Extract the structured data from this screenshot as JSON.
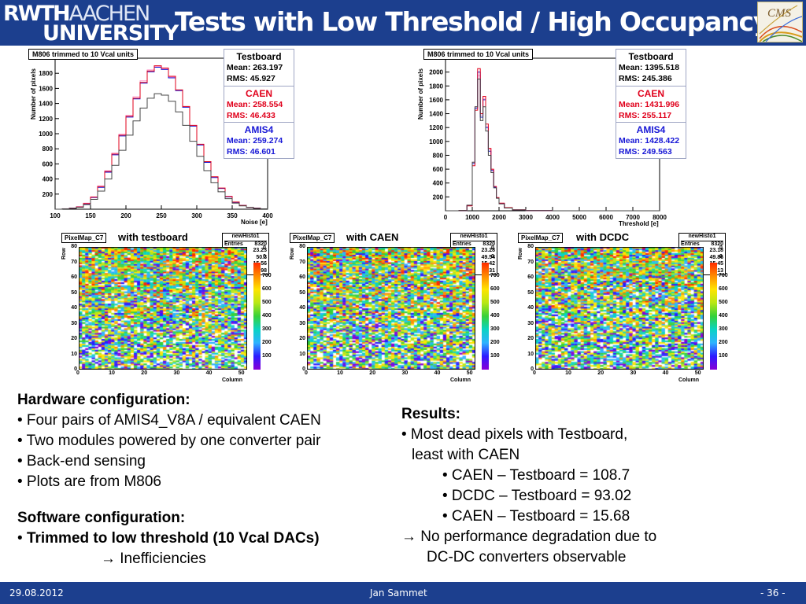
{
  "header": {
    "logo_line1a": "RWTH",
    "logo_line1b": "AACHEN",
    "logo_line2": "UNIVERSITY",
    "title": "Tests with Low Threshold / High Occupancy",
    "cms_logo": "CMS"
  },
  "histograms": [
    {
      "title": "M806 trimmed to 10 Vcal units",
      "ylabel": "Number of pixels",
      "xlabel": "Noise [e]",
      "stats": [
        {
          "name": "Testboard",
          "mean": "Mean: 263.197",
          "rms": "RMS: 45.927",
          "color": "#000000"
        },
        {
          "name": "CAEN",
          "mean": "Mean: 258.554",
          "rms": "RMS: 46.433",
          "color": "#e0001b"
        },
        {
          "name": "AMIS4",
          "mean": "Mean: 259.274",
          "rms": "RMS: 46.601",
          "color": "#1717d6"
        }
      ]
    },
    {
      "title": "M806 trimmed to 10 Vcal units",
      "ylabel": "Number of pixels",
      "xlabel": "Threshold [e]",
      "stats": [
        {
          "name": "Testboard",
          "mean": "Mean: 1395.518",
          "rms": "RMS: 245.386",
          "color": "#000000"
        },
        {
          "name": "CAEN",
          "mean": "Mean: 1431.996",
          "rms": "RMS: 255.117",
          "color": "#e0001b"
        },
        {
          "name": "AMIS4",
          "mean": "Mean: 1428.422",
          "rms": "RMS: 249.563",
          "color": "#1717d6"
        }
      ]
    }
  ],
  "chart_data": [
    {
      "type": "line",
      "title": "M806 trimmed to 10 Vcal units",
      "xlabel": "Noise [e]",
      "ylabel": "Number of pixels",
      "xlim": [
        100,
        400
      ],
      "ylim": [
        0,
        2000
      ],
      "xticks": [
        "100",
        "150",
        "200",
        "250",
        "300",
        "350",
        "400"
      ],
      "yticks": [
        "200",
        "400",
        "600",
        "800",
        "1000",
        "1200",
        "1400",
        "1600",
        "1800"
      ],
      "x": [
        100,
        110,
        120,
        130,
        140,
        150,
        160,
        170,
        180,
        190,
        200,
        210,
        220,
        230,
        240,
        250,
        260,
        270,
        280,
        290,
        300,
        310,
        320,
        330,
        340,
        350,
        360,
        370,
        380,
        390,
        400
      ],
      "series": [
        {
          "name": "Testboard",
          "color": "#444444",
          "values": [
            0,
            5,
            10,
            25,
            60,
            130,
            240,
            400,
            580,
            780,
            980,
            1170,
            1340,
            1470,
            1530,
            1510,
            1430,
            1290,
            1110,
            900,
            700,
            510,
            350,
            230,
            140,
            80,
            45,
            25,
            10,
            5,
            0
          ]
        },
        {
          "name": "CAEN",
          "color": "#e0001b",
          "values": [
            0,
            5,
            12,
            30,
            75,
            160,
            300,
            500,
            730,
            980,
            1230,
            1470,
            1680,
            1830,
            1900,
            1870,
            1760,
            1580,
            1360,
            1110,
            860,
            630,
            430,
            280,
            170,
            95,
            50,
            25,
            12,
            5,
            0
          ]
        },
        {
          "name": "AMIS4",
          "color": "#1717d6",
          "values": [
            0,
            5,
            12,
            30,
            70,
            155,
            290,
            490,
            720,
            970,
            1220,
            1460,
            1670,
            1820,
            1880,
            1850,
            1740,
            1570,
            1350,
            1100,
            850,
            620,
            420,
            275,
            165,
            90,
            50,
            25,
            12,
            5,
            0
          ]
        },
        {
          "name": "",
          "color": "#ff99cc",
          "values": [
            0,
            6,
            14,
            34,
            80,
            165,
            310,
            510,
            745,
            995,
            1245,
            1490,
            1700,
            1845,
            1890,
            1860,
            1750,
            1575,
            1355,
            1105,
            855,
            625,
            425,
            278,
            168,
            93,
            50,
            25,
            12,
            5,
            0
          ]
        }
      ]
    },
    {
      "type": "line",
      "title": "M806 trimmed to 10 Vcal units",
      "xlabel": "Threshold [e]",
      "ylabel": "Number of pixels",
      "xlim": [
        0,
        8000
      ],
      "ylim": [
        0,
        2200
      ],
      "xticks": [
        "0",
        "1000",
        "2000",
        "3000",
        "4000",
        "5000",
        "6000",
        "7000",
        "8000"
      ],
      "yticks": [
        "200",
        "400",
        "600",
        "800",
        "1000",
        "1200",
        "1400",
        "1600",
        "1800",
        "2000"
      ],
      "x": [
        0,
        500,
        800,
        1000,
        1100,
        1200,
        1300,
        1400,
        1500,
        1600,
        1700,
        1800,
        1900,
        2000,
        2200,
        2500,
        3000,
        4000,
        6000,
        8000
      ],
      "series": [
        {
          "name": "Testboard",
          "color": "#444444",
          "values": [
            0,
            5,
            80,
            700,
            1500,
            1900,
            1300,
            1500,
            1150,
            800,
            550,
            330,
            180,
            100,
            40,
            12,
            3,
            0,
            0,
            0
          ]
        },
        {
          "name": "CAEN",
          "color": "#e0001b",
          "values": [
            0,
            5,
            70,
            650,
            1450,
            2050,
            1400,
            1650,
            1250,
            900,
            600,
            350,
            190,
            110,
            45,
            14,
            3,
            0,
            0,
            0
          ]
        },
        {
          "name": "AMIS4",
          "color": "#1717d6",
          "values": [
            0,
            5,
            75,
            680,
            1480,
            2000,
            1350,
            1600,
            1200,
            860,
            580,
            340,
            185,
            105,
            42,
            13,
            3,
            0,
            0,
            0
          ]
        },
        {
          "name": "",
          "color": "#ff99cc",
          "values": [
            0,
            5,
            80,
            700,
            1500,
            1950,
            1380,
            1620,
            1220,
            880,
            590,
            345,
            188,
            108,
            44,
            13,
            3,
            0,
            0,
            0
          ]
        }
      ]
    },
    {
      "type": "heatmap",
      "title": "PixelMap_C7",
      "xlabel": "Column",
      "ylabel": "Row",
      "xlim": [
        0,
        52
      ],
      "ylim": [
        0,
        80
      ],
      "zlim": [
        0,
        800
      ],
      "xticks": [
        "0",
        "10",
        "20",
        "30",
        "40",
        "50"
      ],
      "yticks": [
        "0",
        "10",
        "20",
        "30",
        "40",
        "50",
        "60",
        "70",
        "80"
      ],
      "zticks": [
        "0",
        "100",
        "200",
        "300",
        "400",
        "500",
        "600",
        "700",
        "800"
      ]
    }
  ],
  "pixelmaps": [
    {
      "title": "PixelMap_C7",
      "label": "with testboard",
      "hist": "newHisto1",
      "entries": "8320",
      "mean_x": "23.23",
      "mean_y": "50.3",
      "rms_x": "15.56",
      "rms_y": "18.98"
    },
    {
      "title": "PixelMap_C7",
      "label": "with CAEN",
      "hist": "newHisto1",
      "entries": "8320",
      "mean_x": "23.28",
      "mean_y": "49.54",
      "rms_x": "15.42",
      "rms_y": "19.31"
    },
    {
      "title": "PixelMap_C7",
      "label": "with DCDC",
      "hist": "newHisto1",
      "entries": "8320",
      "mean_x": "23.18",
      "mean_y": "49.86",
      "rms_x": "15.45",
      "rms_y": "19.13"
    }
  ],
  "pixelmap_labels": {
    "entries": "Entries",
    "mean_x": "Mean x",
    "mean_y": "Mean y",
    "rms_x": "RMS x",
    "rms_y": "RMS y",
    "row": "Row",
    "column": "Column",
    "top_vals": [
      "0",
      "0"
    ]
  },
  "hardware": {
    "heading": "Hardware configuration:",
    "items": [
      "• Four pairs of AMIS4_V8A / equivalent CAEN",
      "• Two modules powered by one converter pair",
      "• Back-end sensing",
      "• Plots are from M806"
    ]
  },
  "software": {
    "heading": "Software configuration:",
    "bullet": "• ",
    "item": "Trimmed to low threshold (10 Vcal DACs)",
    "arrow": "→ Inefficiencies"
  },
  "results": {
    "heading": "Results:",
    "line1": "• Most dead pixels with Testboard,",
    "line2": "least with CAEN",
    "sub": [
      "• CAEN – Testboard = 108.7",
      "• DCDC – Testboard = 93.02",
      "• CAEN – Testboard = 15.68"
    ],
    "conclusion1": "→ No performance degradation due to",
    "conclusion2": "DC-DC converters observable"
  },
  "footer": {
    "date": "29.08.2012",
    "author": "Jan Sammet",
    "page": "- 36 -"
  }
}
